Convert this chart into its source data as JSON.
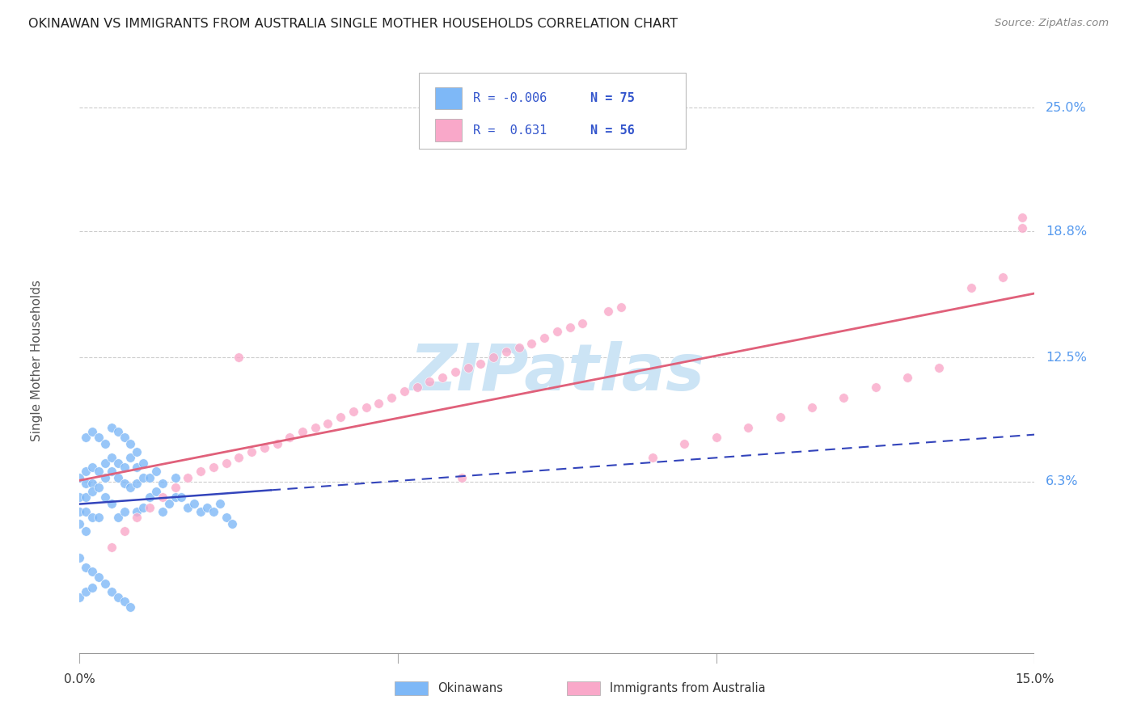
{
  "title": "OKINAWAN VS IMMIGRANTS FROM AUSTRALIA SINGLE MOTHER HOUSEHOLDS CORRELATION CHART",
  "source": "Source: ZipAtlas.com",
  "ylabel": "Single Mother Households",
  "ytick_labels": [
    "25.0%",
    "18.8%",
    "12.5%",
    "6.3%"
  ],
  "ytick_values": [
    0.25,
    0.188,
    0.125,
    0.063
  ],
  "xmin": 0.0,
  "xmax": 0.15,
  "ymin": -0.028,
  "ymax": 0.275,
  "legend_label1": "Okinawans",
  "legend_label2": "Immigrants from Australia",
  "R1": "-0.006",
  "N1": "75",
  "R2": "0.631",
  "N2": "56",
  "color1": "#7eb8f7",
  "color2": "#f9a8c9",
  "line1_color": "#3344bb",
  "line2_color": "#e0607a",
  "line1_solid_end": 0.03,
  "watermark": "ZIPatlas",
  "watermark_color": "#cce4f5",
  "okinawan_x": [
    0.0,
    0.0,
    0.0,
    0.0,
    0.001,
    0.001,
    0.001,
    0.001,
    0.001,
    0.002,
    0.002,
    0.002,
    0.002,
    0.003,
    0.003,
    0.003,
    0.004,
    0.004,
    0.004,
    0.005,
    0.005,
    0.005,
    0.006,
    0.006,
    0.006,
    0.007,
    0.007,
    0.007,
    0.008,
    0.008,
    0.009,
    0.009,
    0.009,
    0.01,
    0.01,
    0.01,
    0.011,
    0.011,
    0.012,
    0.012,
    0.013,
    0.013,
    0.014,
    0.015,
    0.015,
    0.016,
    0.017,
    0.018,
    0.019,
    0.02,
    0.021,
    0.022,
    0.023,
    0.024,
    0.0,
    0.001,
    0.002,
    0.003,
    0.004,
    0.005,
    0.006,
    0.007,
    0.008,
    0.001,
    0.002,
    0.003,
    0.004,
    0.005,
    0.006,
    0.007,
    0.008,
    0.009,
    0.0,
    0.001,
    0.002
  ],
  "okinawan_y": [
    0.065,
    0.055,
    0.048,
    0.042,
    0.068,
    0.062,
    0.055,
    0.048,
    0.038,
    0.07,
    0.062,
    0.058,
    0.045,
    0.068,
    0.06,
    0.045,
    0.072,
    0.065,
    0.055,
    0.075,
    0.068,
    0.052,
    0.072,
    0.065,
    0.045,
    0.07,
    0.062,
    0.048,
    0.075,
    0.06,
    0.07,
    0.062,
    0.048,
    0.072,
    0.065,
    0.05,
    0.065,
    0.055,
    0.068,
    0.058,
    0.062,
    0.048,
    0.052,
    0.065,
    0.055,
    0.055,
    0.05,
    0.052,
    0.048,
    0.05,
    0.048,
    0.052,
    0.045,
    0.042,
    0.025,
    0.02,
    0.018,
    0.015,
    0.012,
    0.008,
    0.005,
    0.003,
    0.0,
    0.085,
    0.088,
    0.085,
    0.082,
    0.09,
    0.088,
    0.085,
    0.082,
    0.078,
    0.005,
    0.008,
    0.01
  ],
  "australia_x": [
    0.005,
    0.007,
    0.009,
    0.011,
    0.013,
    0.015,
    0.017,
    0.019,
    0.021,
    0.023,
    0.025,
    0.027,
    0.029,
    0.031,
    0.033,
    0.035,
    0.037,
    0.039,
    0.041,
    0.043,
    0.045,
    0.047,
    0.049,
    0.051,
    0.053,
    0.055,
    0.057,
    0.059,
    0.061,
    0.063,
    0.065,
    0.067,
    0.069,
    0.071,
    0.073,
    0.075,
    0.077,
    0.079,
    0.083,
    0.085,
    0.09,
    0.095,
    0.1,
    0.105,
    0.11,
    0.115,
    0.12,
    0.125,
    0.13,
    0.135,
    0.14,
    0.145,
    0.148,
    0.025,
    0.148,
    0.06
  ],
  "australia_y": [
    0.03,
    0.038,
    0.045,
    0.05,
    0.055,
    0.06,
    0.065,
    0.068,
    0.07,
    0.072,
    0.075,
    0.078,
    0.08,
    0.082,
    0.085,
    0.088,
    0.09,
    0.092,
    0.095,
    0.098,
    0.1,
    0.102,
    0.105,
    0.108,
    0.11,
    0.113,
    0.115,
    0.118,
    0.12,
    0.122,
    0.125,
    0.128,
    0.13,
    0.132,
    0.135,
    0.138,
    0.14,
    0.142,
    0.148,
    0.15,
    0.075,
    0.082,
    0.085,
    0.09,
    0.095,
    0.1,
    0.105,
    0.11,
    0.115,
    0.12,
    0.16,
    0.165,
    0.195,
    0.125,
    0.19,
    0.065
  ]
}
